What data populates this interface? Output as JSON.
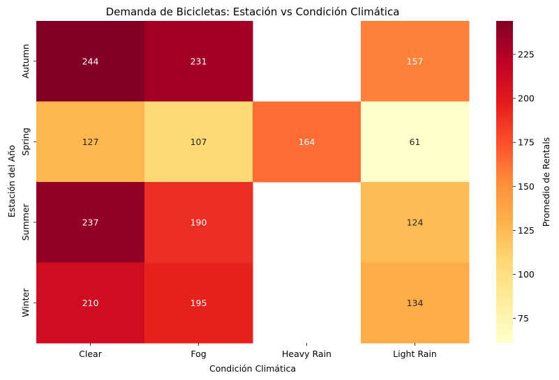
{
  "chart_data": {
    "type": "heatmap",
    "title": "Demanda de Bicicletas: Estación vs Condición Climática",
    "xlabel": "Condición Climática",
    "ylabel": "Estación del Año",
    "x_categories": [
      "Clear",
      "Fog",
      "Heavy Rain",
      "Light Rain"
    ],
    "y_categories": [
      "Autumn",
      "Spring",
      "Summer",
      "Winter"
    ],
    "values": [
      [
        244,
        231,
        null,
        157
      ],
      [
        127,
        107,
        164,
        61
      ],
      [
        237,
        190,
        null,
        124
      ],
      [
        210,
        195,
        null,
        134
      ]
    ],
    "colorbar": {
      "label": "Promedio de Rentals",
      "ticks": [
        75,
        100,
        125,
        150,
        175,
        200,
        225
      ],
      "vmin": 61,
      "vmax": 244,
      "colormap": "YlOrRd"
    }
  }
}
